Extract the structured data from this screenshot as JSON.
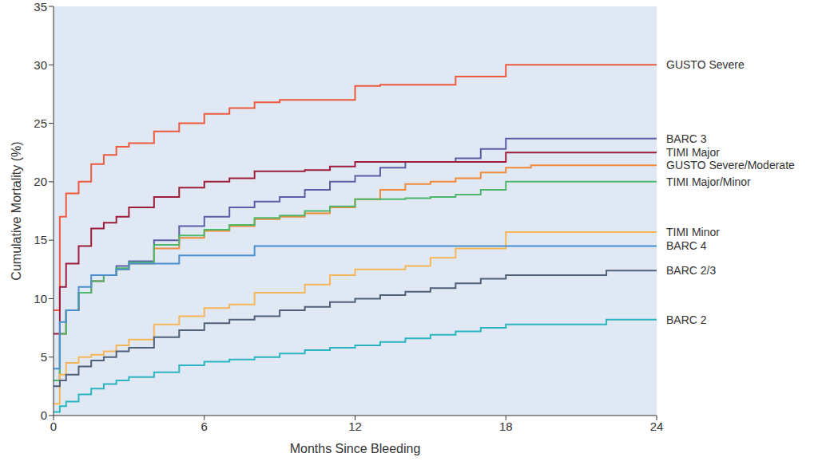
{
  "chart_data": {
    "type": "line",
    "line_style": "step",
    "grid": false,
    "x_label": "Months Since Bleeding",
    "y_label": "Cumulative Mortality (%)",
    "xlim": [
      0,
      24
    ],
    "xticks": [
      0,
      6,
      12,
      18,
      24
    ],
    "ylim": [
      0,
      35
    ],
    "yticks": [
      0,
      5,
      10,
      15,
      20,
      25,
      30,
      35
    ],
    "x": [
      0,
      0.25,
      0.5,
      1,
      1.5,
      2,
      2.5,
      3,
      4,
      5,
      6,
      7,
      8,
      9,
      10,
      11,
      12,
      13,
      14,
      15,
      16,
      17,
      18,
      19,
      20,
      21,
      22,
      23,
      24
    ],
    "series": [
      {
        "name": "GUSTO Severe",
        "color": "#ee5a3d",
        "values": [
          9,
          17,
          19,
          20,
          21.5,
          22.3,
          23,
          23.3,
          24.3,
          25,
          25.8,
          26.3,
          26.8,
          27,
          27,
          27,
          28.2,
          28.3,
          28.3,
          28.3,
          29,
          29,
          30,
          30,
          30,
          30,
          30,
          30,
          30
        ]
      },
      {
        "name": "BARC 3",
        "color": "#5b5ea6",
        "values": [
          3,
          7,
          9,
          10.5,
          11.5,
          12,
          12.8,
          13.2,
          15,
          16.2,
          17,
          17.8,
          18.3,
          18.7,
          19.3,
          20,
          20.5,
          21.2,
          21.7,
          21.7,
          22,
          22.8,
          23.7,
          23.7,
          23.7,
          23.7,
          23.7,
          23.7,
          23.7
        ]
      },
      {
        "name": "TIMI Major",
        "color": "#a01d3a",
        "values": [
          7,
          11,
          13,
          14.5,
          16,
          16.5,
          17,
          17.8,
          18.7,
          19.5,
          20,
          20.3,
          20.9,
          20.9,
          21,
          21.3,
          21.7,
          21.7,
          21.7,
          21.7,
          21.7,
          21.7,
          22.5,
          22.5,
          22.5,
          22.5,
          22.5,
          22.5,
          22.5
        ]
      },
      {
        "name": "GUSTO Severe/Moderate",
        "color": "#f08a3c",
        "values": [
          3,
          7,
          9,
          10.5,
          11.5,
          12,
          12.5,
          13,
          14.3,
          15.2,
          15.8,
          16.2,
          16.8,
          17,
          17.3,
          17.8,
          18.5,
          19.3,
          19.8,
          20,
          20.3,
          20.8,
          21.2,
          21.4,
          21.4,
          21.4,
          21.4,
          21.4,
          21.4
        ]
      },
      {
        "name": "TIMI Major/Minor",
        "color": "#4db86a",
        "values": [
          3,
          7,
          9,
          10.5,
          11.5,
          12,
          12.6,
          13.1,
          14.6,
          15.4,
          15.9,
          16.3,
          16.9,
          17.1,
          17.5,
          17.9,
          18.5,
          18.5,
          18.6,
          18.7,
          18.9,
          19.3,
          20,
          20,
          20,
          20,
          20,
          20,
          20
        ]
      },
      {
        "name": "TIMI Minor",
        "color": "#f5b65a",
        "values": [
          1,
          3.5,
          4.5,
          5,
          5.2,
          5.5,
          6,
          6.5,
          7.8,
          8.5,
          9.2,
          9.5,
          10.5,
          10.5,
          11.2,
          12,
          12.5,
          12.5,
          12.8,
          13.5,
          14.3,
          14.3,
          15.7,
          15.7,
          15.7,
          15.7,
          15.7,
          15.7,
          15.7
        ]
      },
      {
        "name": "BARC 4",
        "color": "#4a90d0",
        "values": [
          4,
          8,
          9,
          11,
          12,
          12,
          12.5,
          13,
          13,
          13.7,
          13.7,
          13.7,
          14.5,
          14.5,
          14.5,
          14.5,
          14.5,
          14.5,
          14.5,
          14.5,
          14.5,
          14.5,
          14.5,
          14.5,
          14.5,
          14.5,
          14.5,
          14.5,
          14.5
        ]
      },
      {
        "name": "BARC 2/3",
        "color": "#4f6078",
        "values": [
          2.5,
          3,
          3.5,
          4.2,
          4.7,
          5,
          5.5,
          5.8,
          6.7,
          7.3,
          7.9,
          8.2,
          8.5,
          9,
          9.3,
          9.7,
          10,
          10.3,
          10.6,
          10.9,
          11.3,
          11.7,
          12,
          12,
          12,
          12,
          12.4,
          12.4,
          12.4
        ]
      },
      {
        "name": "BARC 2",
        "color": "#2ab5c0",
        "values": [
          0.3,
          0.8,
          1.2,
          1.8,
          2.3,
          2.7,
          3,
          3.3,
          3.7,
          4.3,
          4.6,
          4.8,
          5,
          5.3,
          5.6,
          5.8,
          6,
          6.3,
          6.6,
          6.9,
          7.2,
          7.5,
          7.8,
          7.8,
          7.8,
          7.8,
          8.2,
          8.2,
          8.2
        ]
      }
    ]
  }
}
